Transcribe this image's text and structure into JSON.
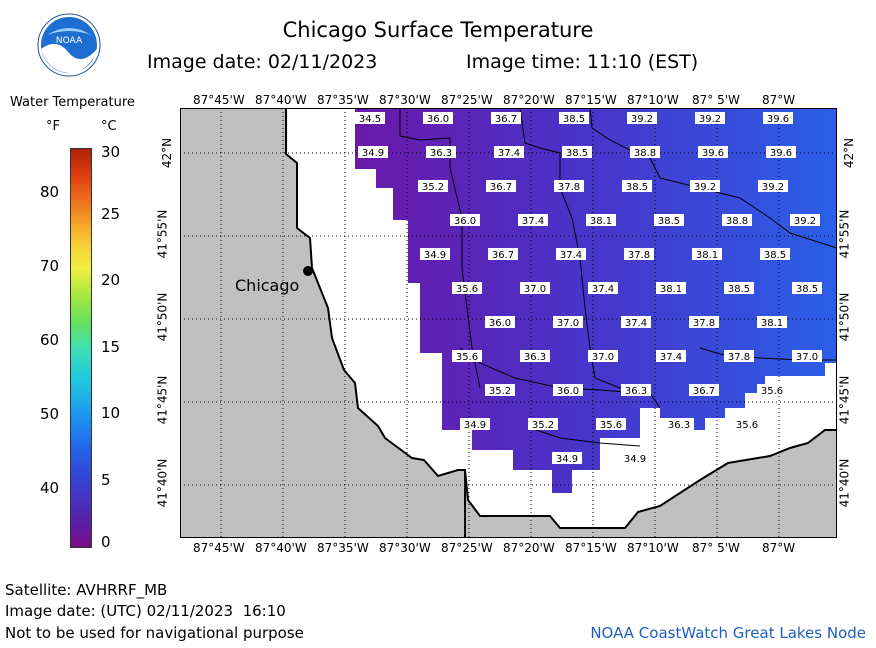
{
  "header": {
    "title": "Chicago Surface Temperature",
    "date_text": "Image date: 02/11/2023",
    "time_text": "Image time: 11:10 (EST)",
    "logo_text": "NOAA"
  },
  "legend": {
    "title": "Water Temperature",
    "unit_f": "°F",
    "unit_c": "°C",
    "f_ticks": [
      "80",
      "70",
      "60",
      "50",
      "40"
    ],
    "c_ticks": [
      "30",
      "25",
      "20",
      "15",
      "10",
      "5",
      "0"
    ]
  },
  "map": {
    "city_label": "Chicago",
    "lon_labels": [
      "87°45'W",
      "87°40'W",
      "87°35'W",
      "87°30'W",
      "87°25'W",
      "87°20'W",
      "87°15'W",
      "87°10'W",
      "87° 5'W",
      "87°W"
    ],
    "lat_labels": [
      "42°N",
      "41°55'N",
      "41°50'N",
      "41°45'N",
      "41°40'N"
    ],
    "colors": {
      "land": "#c0c0c0",
      "water_ice": "#ffffff",
      "warm_water": "#5a1fb0",
      "cold_water": "#2a5fe8"
    },
    "temps": [
      {
        "t": "34.5",
        "r": 0,
        "c": 0
      },
      {
        "t": "36.0",
        "r": 0,
        "c": 1
      },
      {
        "t": "36.7",
        "r": 0,
        "c": 2
      },
      {
        "t": "38.5",
        "r": 0,
        "c": 3
      },
      {
        "t": "39.2",
        "r": 0,
        "c": 4
      },
      {
        "t": "39.2",
        "r": 0,
        "c": 5
      },
      {
        "t": "39.6",
        "r": 0,
        "c": 6
      },
      {
        "t": "34.9",
        "r": 1,
        "c": 0
      },
      {
        "t": "36.3",
        "r": 1,
        "c": 1
      },
      {
        "t": "37.4",
        "r": 1,
        "c": 2
      },
      {
        "t": "38.5",
        "r": 1,
        "c": 3
      },
      {
        "t": "38.8",
        "r": 1,
        "c": 4
      },
      {
        "t": "39.6",
        "r": 1,
        "c": 5
      },
      {
        "t": "39.6",
        "r": 1,
        "c": 6
      },
      {
        "t": "35.2",
        "r": 2,
        "c": 0
      },
      {
        "t": "36.7",
        "r": 2,
        "c": 1
      },
      {
        "t": "37.8",
        "r": 2,
        "c": 2
      },
      {
        "t": "38.5",
        "r": 2,
        "c": 3
      },
      {
        "t": "39.2",
        "r": 2,
        "c": 4
      },
      {
        "t": "39.2",
        "r": 2,
        "c": 5
      },
      {
        "t": "36.0",
        "r": 3,
        "c": 0
      },
      {
        "t": "37.4",
        "r": 3,
        "c": 1
      },
      {
        "t": "38.1",
        "r": 3,
        "c": 2
      },
      {
        "t": "38.5",
        "r": 3,
        "c": 3
      },
      {
        "t": "38.8",
        "r": 3,
        "c": 4
      },
      {
        "t": "39.2",
        "r": 3,
        "c": 5
      },
      {
        "t": "34.9",
        "r": 4,
        "c": 0
      },
      {
        "t": "36.7",
        "r": 4,
        "c": 1
      },
      {
        "t": "37.4",
        "r": 4,
        "c": 2
      },
      {
        "t": "37.8",
        "r": 4,
        "c": 3
      },
      {
        "t": "38.1",
        "r": 4,
        "c": 4
      },
      {
        "t": "38.5",
        "r": 4,
        "c": 5
      },
      {
        "t": "35.6",
        "r": 5,
        "c": 0
      },
      {
        "t": "37.0",
        "r": 5,
        "c": 1
      },
      {
        "t": "37.4",
        "r": 5,
        "c": 2
      },
      {
        "t": "38.1",
        "r": 5,
        "c": 3
      },
      {
        "t": "38.5",
        "r": 5,
        "c": 4
      },
      {
        "t": "38.5",
        "r": 5,
        "c": 5
      },
      {
        "t": "36.0",
        "r": 6,
        "c": 0
      },
      {
        "t": "37.0",
        "r": 6,
        "c": 1
      },
      {
        "t": "37.4",
        "r": 6,
        "c": 2
      },
      {
        "t": "37.8",
        "r": 6,
        "c": 3
      },
      {
        "t": "38.1",
        "r": 6,
        "c": 4
      },
      {
        "t": "35.6",
        "r": 7,
        "c": 0
      },
      {
        "t": "36.3",
        "r": 7,
        "c": 1
      },
      {
        "t": "37.0",
        "r": 7,
        "c": 2
      },
      {
        "t": "37.4",
        "r": 7,
        "c": 3
      },
      {
        "t": "37.8",
        "r": 7,
        "c": 4
      },
      {
        "t": "37.0",
        "r": 7,
        "c": 5
      },
      {
        "t": "35.2",
        "r": 8,
        "c": 0
      },
      {
        "t": "36.0",
        "r": 8,
        "c": 1
      },
      {
        "t": "36.3",
        "r": 8,
        "c": 2
      },
      {
        "t": "36.7",
        "r": 8,
        "c": 3
      },
      {
        "t": "35.6",
        "r": 8,
        "c": 4
      },
      {
        "t": "34.9",
        "r": 9,
        "c": 0
      },
      {
        "t": "35.2",
        "r": 9,
        "c": 1
      },
      {
        "t": "35.6",
        "r": 9,
        "c": 2
      },
      {
        "t": "36.3",
        "r": 9,
        "c": 3
      },
      {
        "t": "35.6",
        "r": 9,
        "c": 4
      },
      {
        "t": "34.9",
        "r": 10,
        "c": 0
      },
      {
        "t": "34.9",
        "r": 10,
        "c": 1
      }
    ]
  },
  "footer": {
    "satellite": "Satellite: AVHRRF_MB",
    "utc_date": "Image date: (UTC) 02/11/2023  16:10",
    "disclaimer": "Not to be used for navigational purpose",
    "credit": "NOAA CoastWatch Great Lakes Node"
  }
}
